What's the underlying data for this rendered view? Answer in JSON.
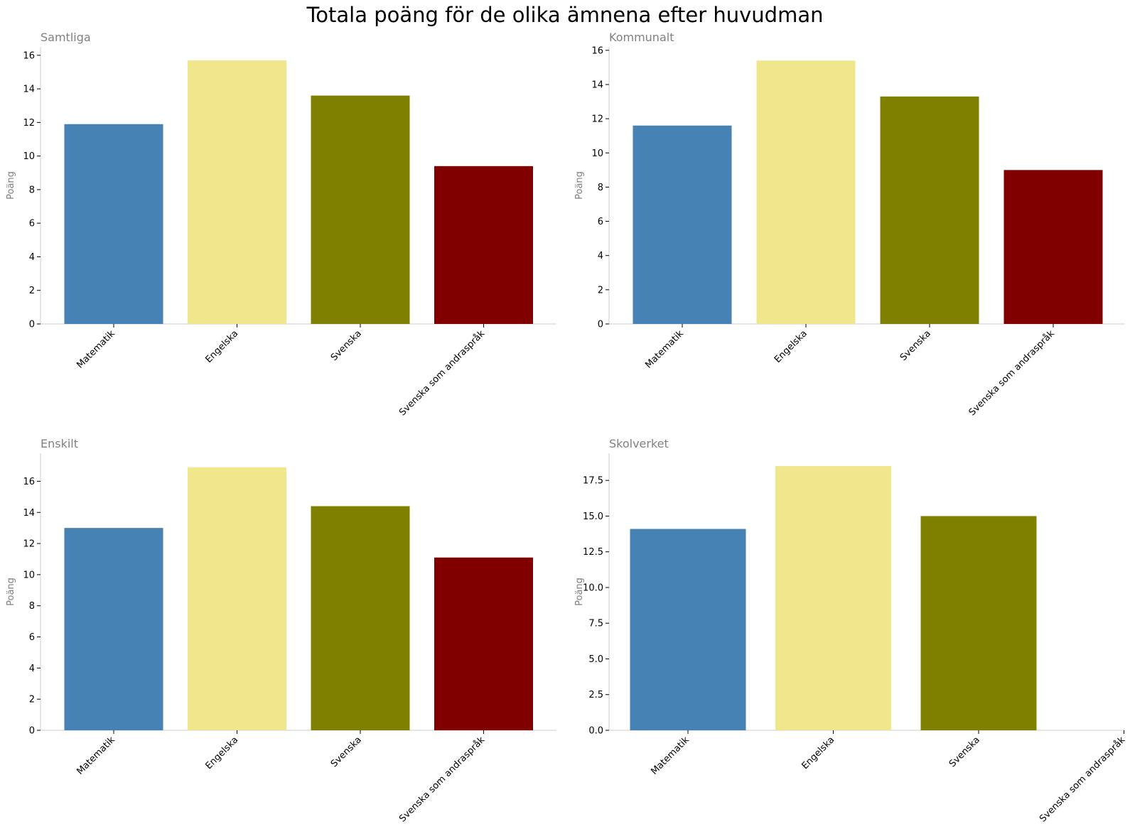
{
  "title": "Totala poäng för de olika ämnena efter huvudman",
  "colors": {
    "Matematik": "#4682b4",
    "Engelska": "#f0e68c",
    "Svenska": "#808000",
    "Svenska som andraspråk": "#800000"
  },
  "chart_data": [
    {
      "type": "bar",
      "title": "Samtliga",
      "ylabel": "Poäng",
      "categories": [
        "Matematik",
        "Engelska",
        "Svenska",
        "Svenska som andraspråk"
      ],
      "values": [
        11.9,
        15.7,
        13.6,
        9.4
      ],
      "ylim": [
        0,
        16.5
      ],
      "yticks": [
        0,
        2,
        4,
        6,
        8,
        10,
        12,
        14,
        16
      ],
      "ytick_labels": [
        "0",
        "2",
        "4",
        "6",
        "8",
        "10",
        "12",
        "14",
        "16"
      ]
    },
    {
      "type": "bar",
      "title": "Kommunalt",
      "ylabel": "Poäng",
      "categories": [
        "Matematik",
        "Engelska",
        "Svenska",
        "Svenska som andraspråk"
      ],
      "values": [
        11.6,
        15.4,
        13.3,
        9.0
      ],
      "ylim": [
        0,
        16.2
      ],
      "yticks": [
        0,
        2,
        4,
        6,
        8,
        10,
        12,
        14,
        16
      ],
      "ytick_labels": [
        "0",
        "2",
        "4",
        "6",
        "8",
        "10",
        "12",
        "14",
        "16"
      ]
    },
    {
      "type": "bar",
      "title": "Enskilt",
      "ylabel": "Poäng",
      "categories": [
        "Matematik",
        "Engelska",
        "Svenska",
        "Svenska som andraspråk"
      ],
      "values": [
        13.0,
        16.9,
        14.4,
        11.1
      ],
      "ylim": [
        0,
        17.8
      ],
      "yticks": [
        0,
        2,
        4,
        6,
        8,
        10,
        12,
        14,
        16
      ],
      "ytick_labels": [
        "0",
        "2",
        "4",
        "6",
        "8",
        "10",
        "12",
        "14",
        "16"
      ]
    },
    {
      "type": "bar",
      "title": "Skolverket",
      "ylabel": "Poäng",
      "categories": [
        "Matematik",
        "Engelska",
        "Svenska",
        "Svenska som andraspråk"
      ],
      "values": [
        14.1,
        18.5,
        15.0,
        null
      ],
      "ylim": [
        0,
        19.4
      ],
      "yticks": [
        0,
        2.5,
        5,
        7.5,
        10,
        12.5,
        15,
        17.5
      ],
      "ytick_labels": [
        "0.0",
        "2.5",
        "5.0",
        "7.5",
        "10.0",
        "12.5",
        "15.0",
        "17.5"
      ]
    }
  ]
}
